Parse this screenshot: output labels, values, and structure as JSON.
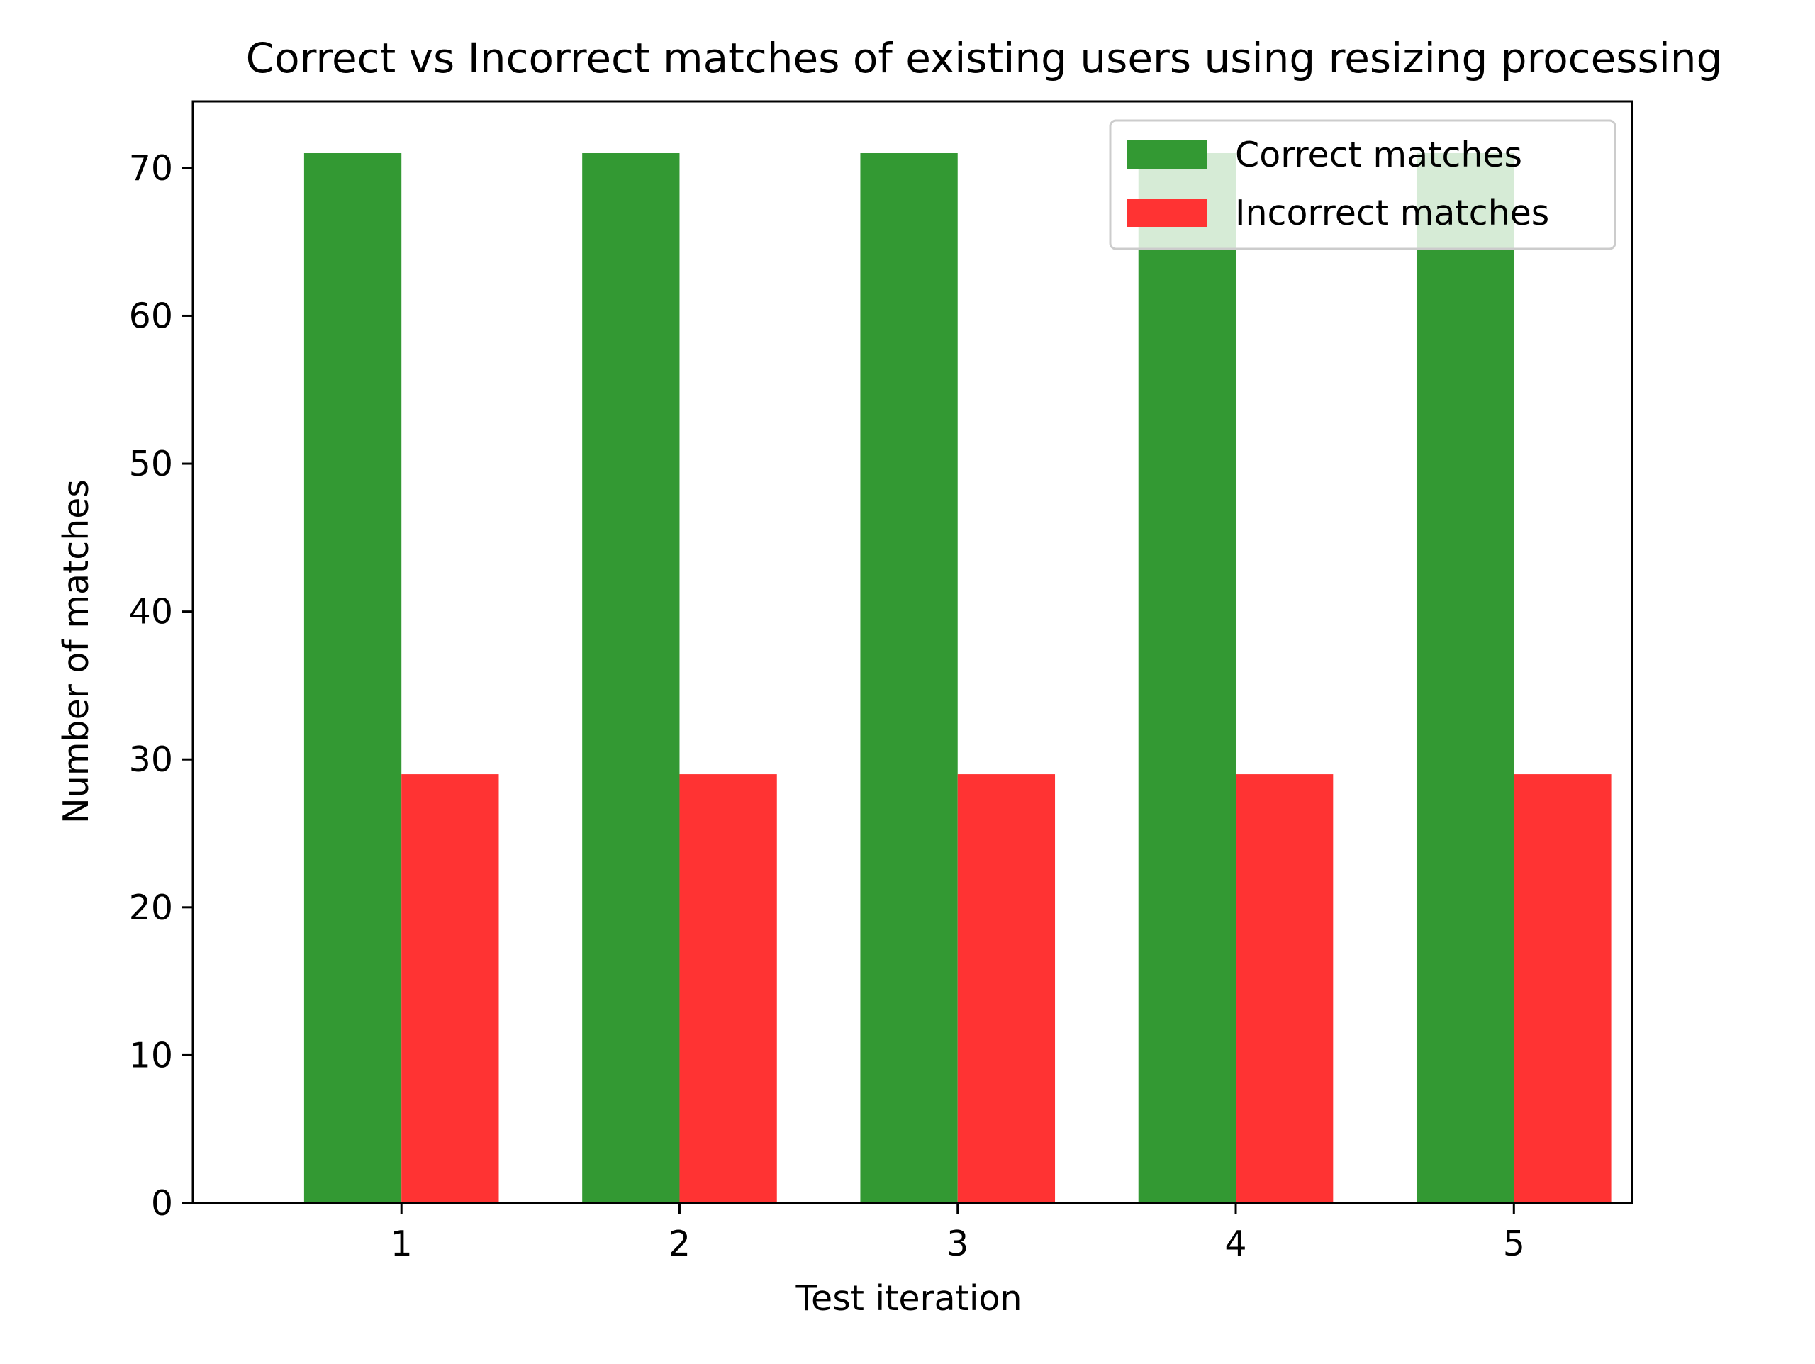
{
  "chart_data": {
    "type": "bar",
    "title": "Correct vs Incorrect matches of existing users using resizing processing",
    "xlabel": "Test iteration",
    "ylabel": "Number of matches",
    "categories": [
      "1",
      "2",
      "3",
      "4",
      "5"
    ],
    "series": [
      {
        "name": "Correct matches",
        "values": [
          71,
          71,
          71,
          71,
          71
        ],
        "color": "#339933"
      },
      {
        "name": "Incorrect matches",
        "values": [
          29,
          29,
          29,
          29,
          29
        ],
        "color": "#ff3333"
      }
    ],
    "ylim": [
      0,
      74.5
    ],
    "yticks": [
      0,
      10,
      20,
      30,
      40,
      50,
      60,
      70
    ],
    "grid": false,
    "legend_position": "top-right"
  }
}
